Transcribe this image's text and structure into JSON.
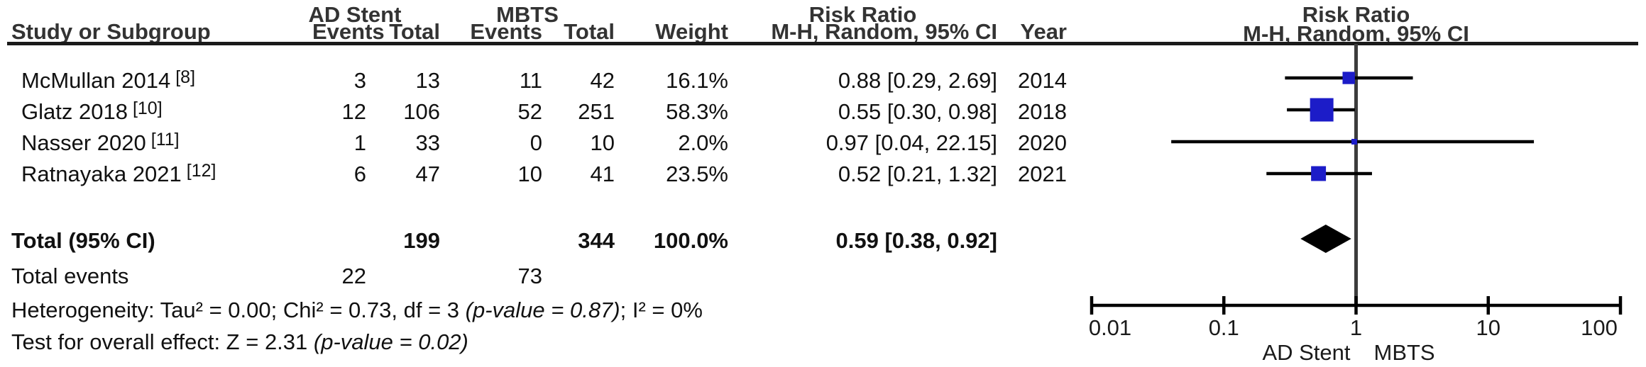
{
  "header": {
    "group_treatment": "AD Stent",
    "group_control": "MBTS",
    "col_study": "Study or Subgroup",
    "col_events": "Events",
    "col_total": "Total",
    "col_events2": "Events",
    "col_total2": "Total",
    "col_weight": "Weight",
    "col_rr_group": "Risk Ratio",
    "col_rr_sub": "M-H, Random, 95% CI",
    "col_year": "Year",
    "plot_title": "Risk Ratio",
    "plot_subtitle": "M-H, Random, 95% CI"
  },
  "rows": [
    {
      "study": "McMullan 2014",
      "ref": "[8]",
      "e1": "3",
      "t1": "13",
      "e2": "11",
      "t2": "42",
      "weight": "16.1%",
      "rr_ci": "0.88 [0.29, 2.69]",
      "year": "2014"
    },
    {
      "study": "Glatz 2018",
      "ref": "[10]",
      "e1": "12",
      "t1": "106",
      "e2": "52",
      "t2": "251",
      "weight": "58.3%",
      "rr_ci": "0.55 [0.30, 0.98]",
      "year": "2018"
    },
    {
      "study": "Nasser 2020",
      "ref": "[11]",
      "e1": "1",
      "t1": "33",
      "e2": "0",
      "t2": "10",
      "weight": "2.0%",
      "rr_ci": "0.97 [0.04, 22.15]",
      "year": "2020"
    },
    {
      "study": "Ratnayaka 2021",
      "ref": "[12]",
      "e1": "6",
      "t1": "47",
      "e2": "10",
      "t2": "41",
      "weight": "23.5%",
      "rr_ci": "0.52 [0.21, 1.32]",
      "year": "2021"
    }
  ],
  "totals": {
    "label": "Total (95% CI)",
    "t1": "199",
    "t2": "344",
    "weight": "100.0%",
    "rr_ci": "0.59 [0.38, 0.92]",
    "events_label": "Total events",
    "e1": "22",
    "e2": "73"
  },
  "footer": {
    "heterogeneity_pre": "Heterogeneity: Tau² = 0.00; Chi² = 0.73, df = 3 ",
    "heterogeneity_italic": "(p-value = 0.87)",
    "heterogeneity_post": "; I² = 0%",
    "overall_pre": "Test for overall effect: Z = 2.31 ",
    "overall_italic": "(p-value = 0.02)"
  },
  "chart_data": {
    "type": "forest",
    "title": "Risk Ratio",
    "subtitle": "M-H, Random, 95% CI",
    "x_axis": {
      "scale": "log",
      "range": [
        0.01,
        100
      ],
      "ticks": [
        0.01,
        0.1,
        1,
        10,
        100
      ],
      "tick_labels": [
        "0.01",
        "0.1",
        "1",
        "10",
        "100"
      ]
    },
    "favours_left": "AD Stent",
    "favours_right": "MBTS",
    "studies": [
      {
        "name": "McMullan 2014",
        "year": 2014,
        "rr": 0.88,
        "ci_low": 0.29,
        "ci_high": 2.69,
        "weight_pct": 16.1
      },
      {
        "name": "Glatz 2018",
        "year": 2018,
        "rr": 0.55,
        "ci_low": 0.3,
        "ci_high": 0.98,
        "weight_pct": 58.3
      },
      {
        "name": "Nasser 2020",
        "year": 2020,
        "rr": 0.97,
        "ci_low": 0.04,
        "ci_high": 22.15,
        "weight_pct": 2.0
      },
      {
        "name": "Ratnayaka 2021",
        "year": 2021,
        "rr": 0.52,
        "ci_low": 0.21,
        "ci_high": 1.32,
        "weight_pct": 23.5
      }
    ],
    "total": {
      "rr": 0.59,
      "ci_low": 0.38,
      "ci_high": 0.92
    },
    "marker_color": "#1c1cc8",
    "line_color": "#000000",
    "diamond_color": "#000000"
  }
}
